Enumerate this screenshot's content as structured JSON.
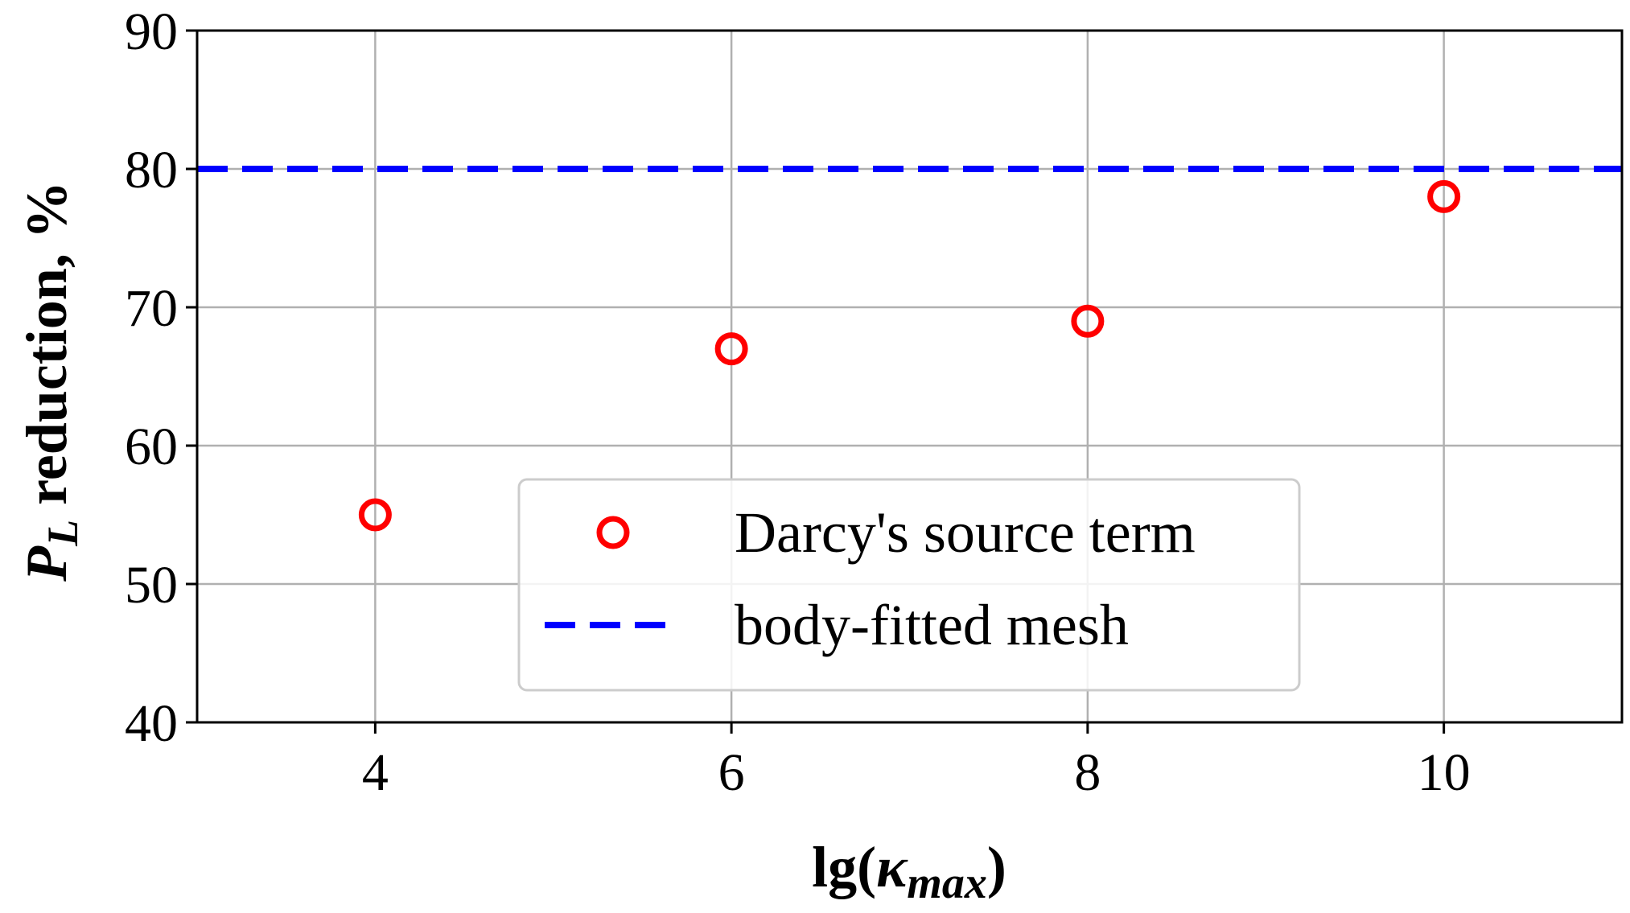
{
  "chart_data": {
    "type": "scatter",
    "title": "",
    "xlabel": {
      "base": "lg(",
      "symbol": "κ",
      "subscript": "max",
      "close": ")"
    },
    "ylabel": {
      "symbol": "P",
      "subscript": "L",
      "text": " reduction, %"
    },
    "xlim": [
      3,
      11
    ],
    "ylim": [
      40,
      90
    ],
    "xticks": [
      4,
      6,
      8,
      10
    ],
    "xtick_labels": [
      "4",
      "6",
      "8",
      "10"
    ],
    "yticks": [
      40,
      50,
      60,
      70,
      80,
      90
    ],
    "ytick_labels": [
      "40",
      "50",
      "60",
      "70",
      "80",
      "90"
    ],
    "grid": true,
    "legend_position": "lower-center",
    "series": [
      {
        "name": "Darcy's source term",
        "kind": "scatter",
        "marker": "open-circle",
        "color": "#ff0000",
        "x": [
          4,
          6,
          8,
          10
        ],
        "y": [
          55,
          67,
          69,
          78
        ]
      },
      {
        "name": "body-fitted mesh",
        "kind": "hline",
        "style": "dashed",
        "color": "#0000ff",
        "y": 80
      }
    ]
  }
}
